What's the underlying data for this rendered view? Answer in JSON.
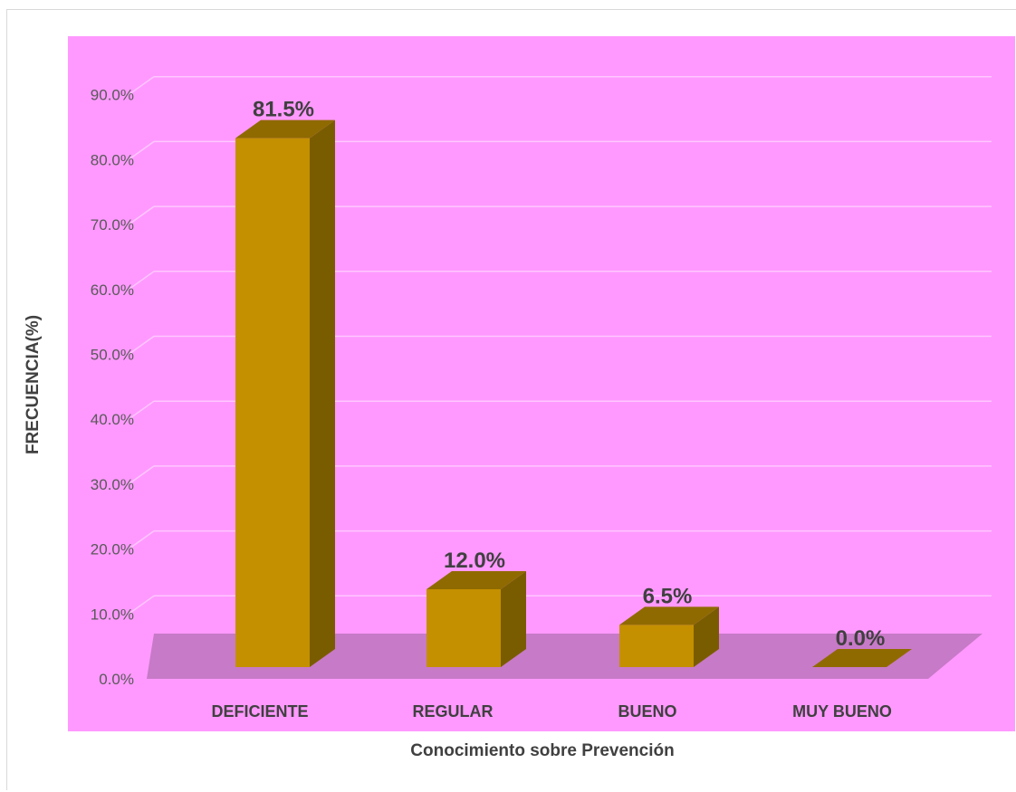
{
  "chart_data": {
    "type": "bar",
    "title": "",
    "xlabel": "Conocimiento sobre Prevención",
    "ylabel": "FRECUENCIA(%)",
    "categories": [
      "DEFICIENTE",
      "REGULAR",
      "BUENO",
      "MUY BUENO"
    ],
    "values": [
      81.5,
      12.0,
      6.5,
      0.0
    ],
    "data_labels": [
      "81.5%",
      "12.0%",
      "6.5%",
      "0.0%"
    ],
    "yticks": [
      "0.0%",
      "10.0%",
      "20.0%",
      "30.0%",
      "40.0%",
      "50.0%",
      "60.0%",
      "70.0%",
      "80.0%",
      "90.0%"
    ],
    "ylim": [
      0,
      90
    ],
    "grid": true,
    "legend": "none",
    "colors": {
      "plot_background": "#ff99ff",
      "floor": "#c77ac7",
      "bar_front": "#c49000",
      "bar_side": "#7a5c00",
      "bar_top": "#8f6a00",
      "gridline": "#ffc8ff"
    }
  }
}
